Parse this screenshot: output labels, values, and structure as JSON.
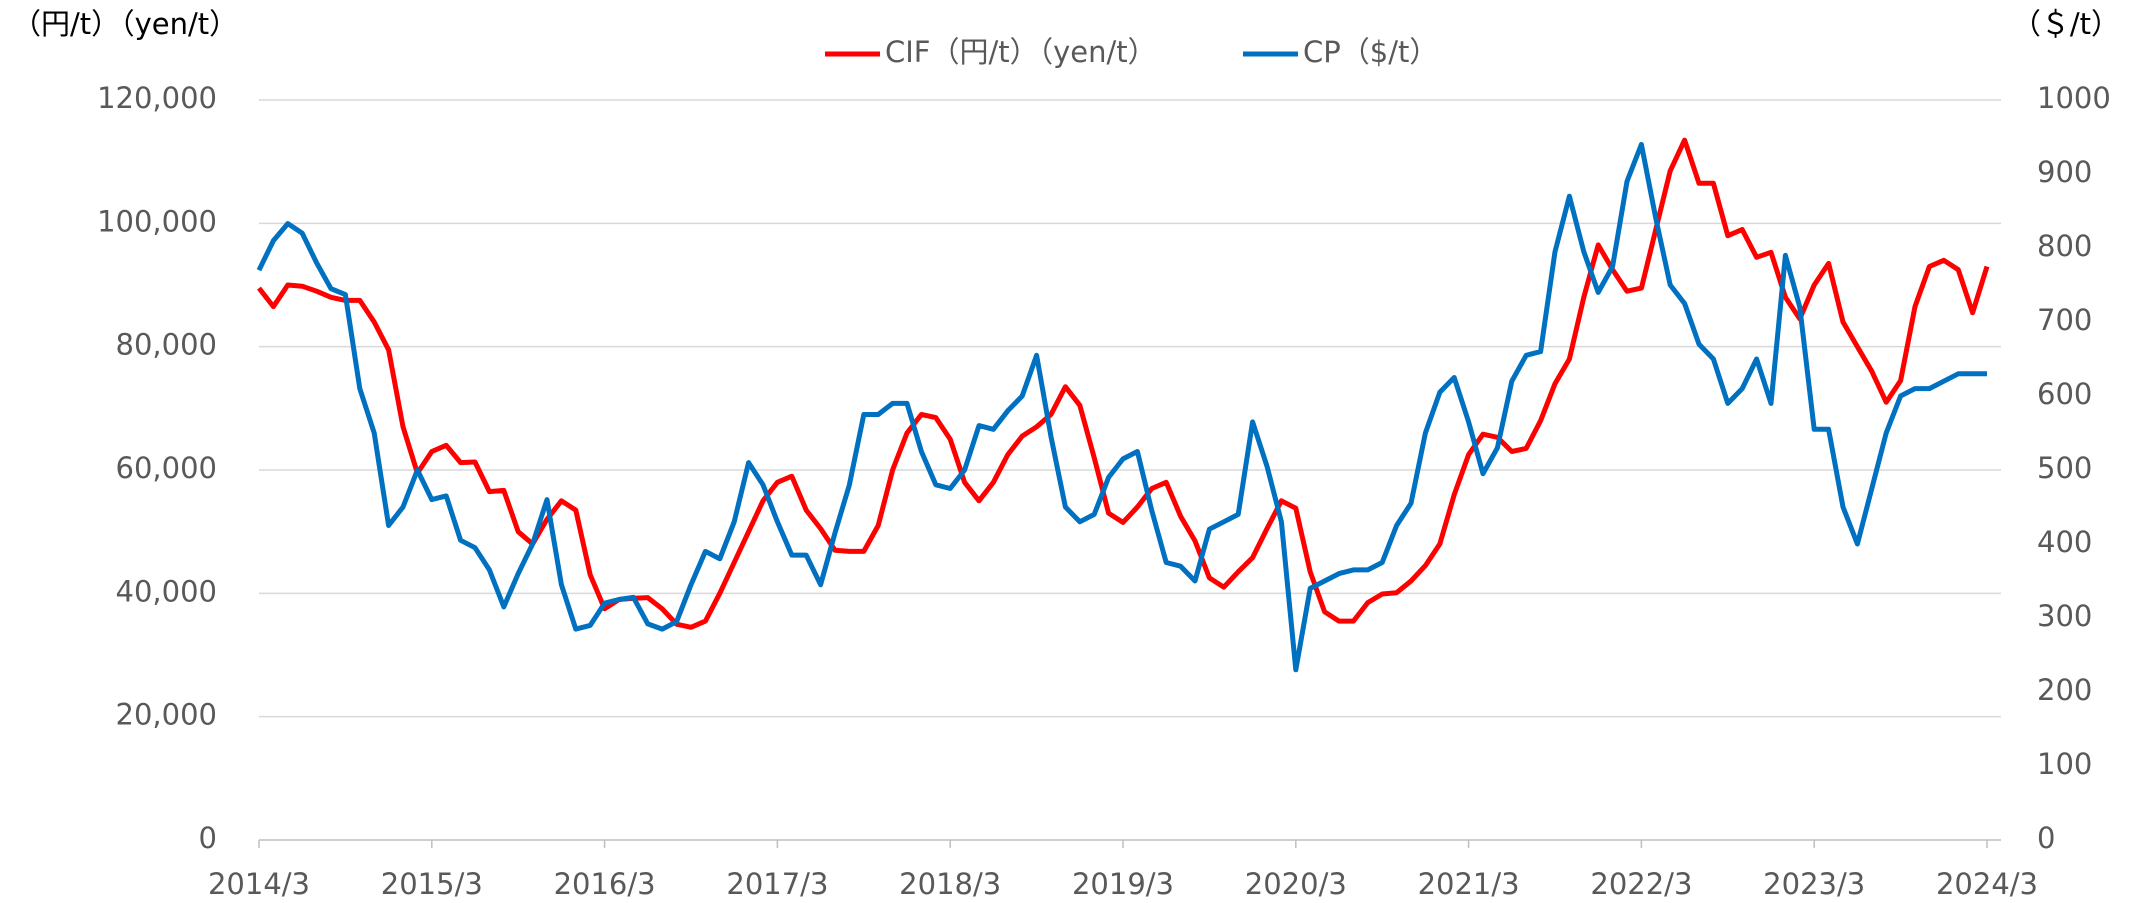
{
  "chart_data": {
    "type": "line",
    "y_axis_label": "（円/t）（yen/t）",
    "y2_axis_label": "（＄/t）",
    "categories": [
      "2014/3",
      null,
      null,
      null,
      null,
      null,
      null,
      null,
      null,
      null,
      null,
      null,
      "2015/3",
      null,
      null,
      null,
      null,
      null,
      null,
      null,
      null,
      null,
      null,
      null,
      "2016/3",
      null,
      null,
      null,
      null,
      null,
      null,
      null,
      null,
      null,
      null,
      null,
      "2017/3",
      null,
      null,
      null,
      null,
      null,
      null,
      null,
      null,
      null,
      null,
      null,
      "2018/3",
      null,
      null,
      null,
      null,
      null,
      null,
      null,
      null,
      null,
      null,
      null,
      "2019/3",
      null,
      null,
      null,
      null,
      null,
      null,
      null,
      null,
      null,
      null,
      null,
      "2020/3",
      null,
      null,
      null,
      null,
      null,
      null,
      null,
      null,
      null,
      null,
      null,
      "2021/3",
      null,
      null,
      null,
      null,
      null,
      null,
      null,
      null,
      null,
      null,
      null,
      "2022/3",
      null,
      null,
      null,
      null,
      null,
      null,
      null,
      null,
      null,
      null,
      null,
      "2023/3",
      null,
      null,
      null,
      null,
      null,
      null,
      null,
      null,
      null,
      null,
      null,
      "2024/3"
    ],
    "series": [
      {
        "name": "CIF（円/t）（yen/t）",
        "color": "#ff0000",
        "axis": "y",
        "values": [
          89500,
          86500,
          90000,
          89800,
          89000,
          88000,
          87500,
          87500,
          84000,
          79500,
          67000,
          59500,
          63000,
          64000,
          61200,
          61300,
          56500,
          56700,
          50000,
          48000,
          52000,
          55000,
          53500,
          43000,
          37500,
          39000,
          39200,
          39300,
          37500,
          35000,
          34500,
          35500,
          40000,
          45000,
          50000,
          55000,
          58000,
          59000,
          53500,
          50500,
          47000,
          46800,
          46800,
          51000,
          60000,
          66000,
          69000,
          68500,
          65000,
          58000,
          55000,
          58000,
          62500,
          65500,
          67000,
          69000,
          73500,
          70500,
          62000,
          53000,
          51500,
          54000,
          57000,
          58000,
          52500,
          48500,
          42500,
          41000,
          43500,
          45800,
          50500,
          55000,
          53800,
          43500,
          37000,
          35500,
          35500,
          38500,
          39900,
          40100,
          42000,
          44500,
          48000,
          56000,
          62500,
          65800,
          65300,
          63000,
          63500,
          68000,
          74000,
          78000,
          88000,
          96500,
          92500,
          89000,
          89500,
          99000,
          108500,
          113500,
          106500,
          106500,
          98000,
          99000,
          94500,
          95300,
          88000,
          84500,
          90000,
          93500,
          84000,
          80000,
          76000,
          71000,
          74500,
          86500,
          93000,
          94000,
          92500,
          85500,
          93000
        ]
      },
      {
        "name": "CP（$/t）",
        "color": "#0070c0",
        "axis": "y2",
        "values": [
          770,
          810,
          833,
          820,
          780,
          745,
          737,
          610,
          550,
          425,
          450,
          500,
          460,
          465,
          405,
          395,
          365,
          315,
          360,
          400,
          460,
          345,
          285,
          290,
          320,
          325,
          328,
          292,
          285,
          295,
          345,
          390,
          380,
          430,
          510,
          480,
          430,
          385,
          385,
          345,
          415,
          480,
          575,
          575,
          590,
          590,
          525,
          480,
          475,
          500,
          560,
          555,
          580,
          600,
          655,
          545,
          450,
          430,
          440,
          490,
          515,
          525,
          445,
          375,
          370,
          350,
          420,
          430,
          440,
          565,
          505,
          430,
          230,
          340,
          350,
          360,
          365,
          365,
          375,
          425,
          455,
          550,
          605,
          625,
          565,
          495,
          530,
          620,
          655,
          660,
          795,
          870,
          795,
          740,
          775,
          890,
          940,
          840,
          750,
          725,
          670,
          650,
          590,
          610,
          650,
          590,
          790,
          720,
          555,
          555,
          450,
          400,
          475,
          550,
          600,
          610,
          610,
          620,
          630,
          630,
          630
        ]
      }
    ],
    "ylim": [
      0,
      120000
    ],
    "yticks": [
      0,
      {
        "value": 20000,
        "label": "20,000"
      },
      {
        "value": 40000,
        "label": "40,000"
      },
      {
        "value": 60000,
        "label": "60,000"
      },
      {
        "value": 80000,
        "label": "80,000"
      },
      {
        "value": 100000,
        "label": "100,000"
      },
      {
        "value": 120000,
        "label": "120,000"
      }
    ],
    "y2lim": [
      0,
      1000
    ],
    "y2ticks": [
      0,
      100,
      200,
      300,
      400,
      500,
      600,
      700,
      800,
      900,
      1000
    ],
    "grid": true,
    "legend": "top"
  }
}
